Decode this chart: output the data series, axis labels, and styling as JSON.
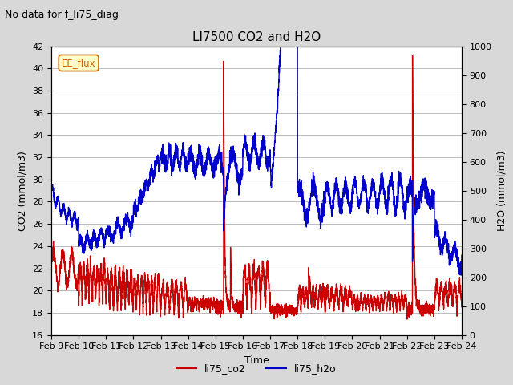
{
  "title": "LI7500 CO2 and H2O",
  "suptitle": "No data for f_li75_diag",
  "xlabel": "Time",
  "ylabel_left": "CO2 (mmol/m3)",
  "ylabel_right": "H2O (mmol/m3)",
  "ylim_left": [
    16,
    42
  ],
  "ylim_right": [
    0,
    1000
  ],
  "yticks_left": [
    16,
    18,
    20,
    22,
    24,
    26,
    28,
    30,
    32,
    34,
    36,
    38,
    40,
    42
  ],
  "yticks_right": [
    0,
    100,
    200,
    300,
    400,
    500,
    600,
    700,
    800,
    900,
    1000
  ],
  "xticklabels": [
    "Feb 9",
    "Feb 10",
    "Feb 11",
    "Feb 12",
    "Feb 13",
    "Feb 14",
    "Feb 15",
    "Feb 16",
    "Feb 17",
    "Feb 18",
    "Feb 19",
    "Feb 20",
    "Feb 21",
    "Feb 22",
    "Feb 23",
    "Feb 24"
  ],
  "color_co2": "#cc0000",
  "color_h2o": "#0000cc",
  "legend_label_co2": "li75_co2",
  "legend_label_h2o": "li75_h2o",
  "annotation_text": "EE_flux",
  "bg_color": "#d8d8d8",
  "plot_bg_color": "#ffffff",
  "grid_color": "#bbbbbb",
  "note_fontsize": 9,
  "title_fontsize": 11,
  "axis_fontsize": 9,
  "tick_fontsize": 8,
  "linewidth_co2": 1.0,
  "linewidth_h2o": 1.0
}
